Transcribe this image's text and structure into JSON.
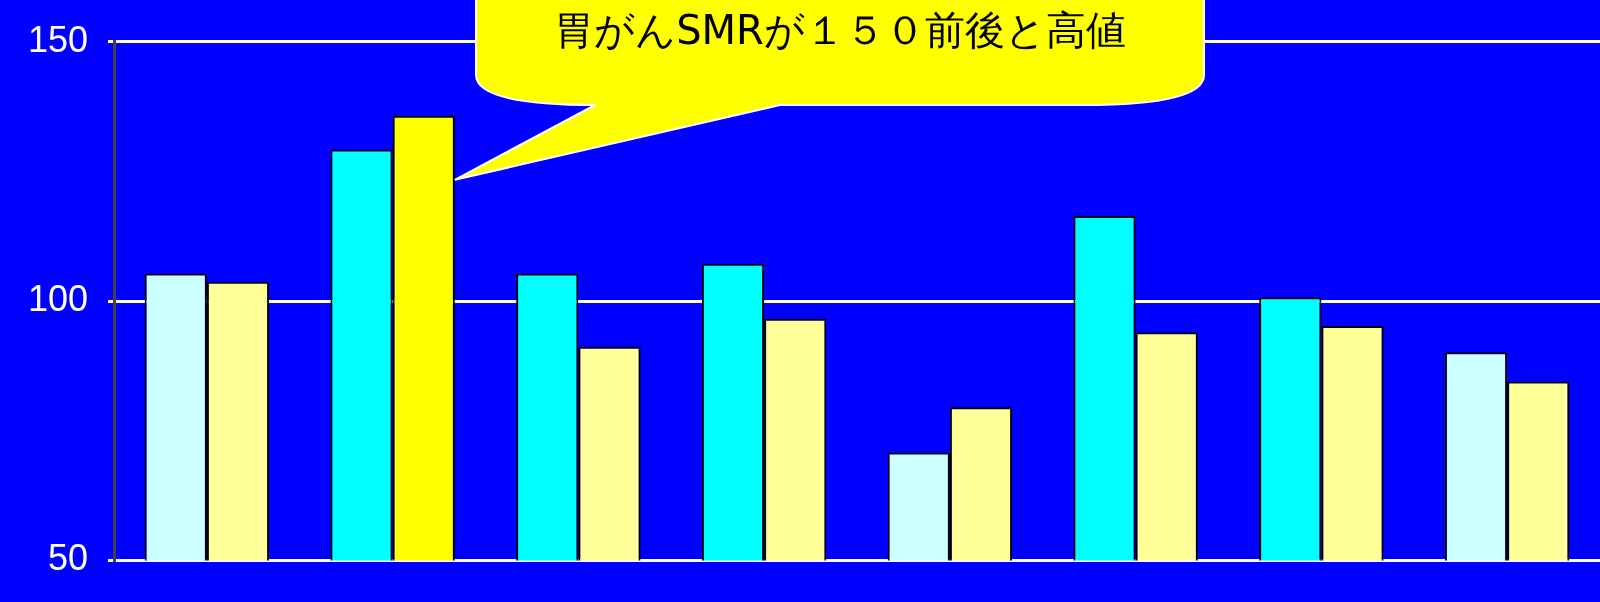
{
  "chart_data": {
    "type": "bar",
    "categories": [
      null,
      null,
      null,
      null,
      null,
      null,
      null,
      null
    ],
    "series": [
      {
        "colors": [
          "#ccffff",
          "#00ffff",
          "#00ffff",
          "#00ffff",
          "#ccffff",
          "#00ffff",
          "#00ffff",
          "#ccffff"
        ],
        "values": [
          105.3,
          129.2,
          105.3,
          107.2,
          70.8,
          116.4,
          100.7,
          90.1
        ]
      },
      {
        "colors": [
          "#ffff99",
          "#ffff00",
          "#ffff99",
          "#ffff99",
          "#ffff99",
          "#ffff99",
          "#ffff99",
          "#ffff99"
        ],
        "values": [
          103.7,
          135.7,
          91.2,
          96.6,
          79.5,
          94.0,
          95.2,
          84.5
        ]
      }
    ],
    "ylim": [
      50,
      150
    ],
    "yticks": [
      50,
      100,
      150
    ],
    "grid": "y",
    "tick_labels": "y",
    "annotations": [
      "胃がんSMRが１５０前後と高値"
    ]
  }
}
